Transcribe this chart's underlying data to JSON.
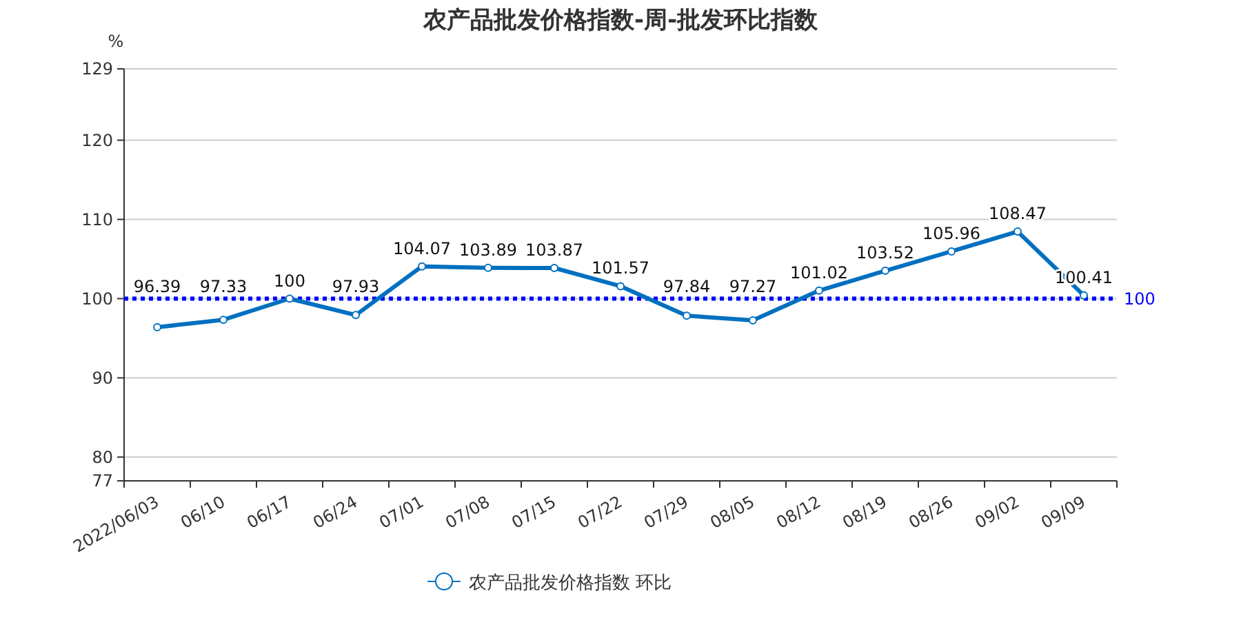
{
  "chart_data": {
    "type": "line",
    "title": "农产品批发价格指数-周-批发环比指数",
    "ylabel": "%",
    "categories": [
      "2022/06/03",
      "06/10",
      "06/17",
      "06/24",
      "07/01",
      "07/08",
      "07/15",
      "07/22",
      "07/29",
      "08/05",
      "08/12",
      "08/19",
      "08/26",
      "09/02",
      "09/09"
    ],
    "series": [
      {
        "name": "农产品批发价格指数 环比",
        "color": "#0070c0",
        "values": [
          96.39,
          97.33,
          100,
          97.93,
          104.07,
          103.89,
          103.87,
          101.57,
          97.84,
          97.27,
          101.02,
          103.52,
          105.96,
          108.47,
          100.41
        ]
      }
    ],
    "ylim": [
      77,
      129
    ],
    "yticks": [
      77,
      80,
      90,
      100,
      110,
      120,
      129
    ],
    "ref_lines": [
      {
        "axis": "y",
        "value": 100,
        "label": "100",
        "color": "#0000ff",
        "line_style": "dotted"
      }
    ],
    "grid": "y",
    "legend": "bottom",
    "marker": "circle",
    "line_style": "solid",
    "data_labels": true
  }
}
